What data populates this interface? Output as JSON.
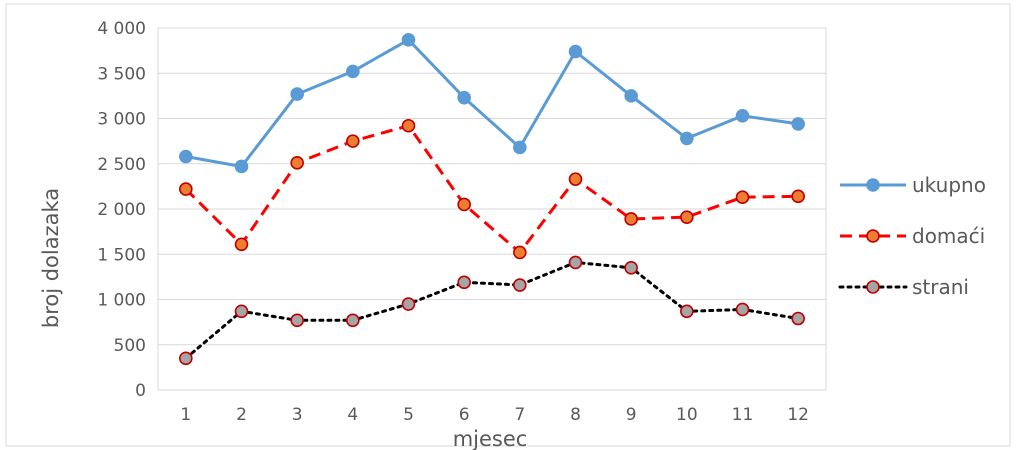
{
  "chart_data": {
    "type": "line",
    "title": "",
    "xlabel": "mjesec",
    "ylabel": "broj dolazaka",
    "categories": [
      "1",
      "2",
      "3",
      "4",
      "5",
      "6",
      "7",
      "8",
      "9",
      "10",
      "11",
      "12"
    ],
    "ylim": [
      0,
      4000
    ],
    "yticks": [
      0,
      500,
      1000,
      1500,
      2000,
      2500,
      3000,
      3500,
      4000
    ],
    "ytick_labels": [
      "0",
      "500",
      "1 000",
      "1 500",
      "2 000",
      "2 500",
      "3 000",
      "3 500",
      "4 000"
    ],
    "grid": true,
    "legend_position": "right",
    "series": [
      {
        "name": "ukupno",
        "color": "#5b9bd5",
        "dash": "solid",
        "marker_fill": "#5b9bd5",
        "marker_stroke": "#5b9bd5",
        "values": [
          2580,
          2470,
          3270,
          3520,
          3870,
          3230,
          2680,
          3740,
          3250,
          2780,
          3030,
          2940
        ]
      },
      {
        "name": "domaći",
        "color": "#ff0000",
        "dash": "dashed",
        "marker_fill": "#ed7d31",
        "marker_stroke": "#c00000",
        "values": [
          2220,
          1610,
          2510,
          2750,
          2920,
          2050,
          1520,
          2330,
          1890,
          1910,
          2130,
          2140
        ]
      },
      {
        "name": "strani",
        "color": "#000000",
        "dash": "dotted",
        "marker_fill": "#a5a5a5",
        "marker_stroke": "#c00000",
        "values": [
          350,
          870,
          770,
          770,
          950,
          1190,
          1160,
          1410,
          1350,
          870,
          890,
          790
        ]
      }
    ]
  }
}
